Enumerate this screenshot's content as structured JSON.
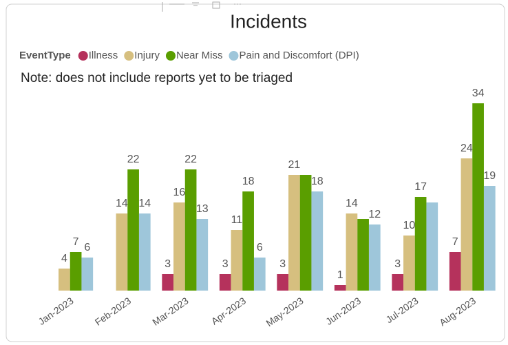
{
  "chart_data": {
    "type": "bar",
    "title": "Incidents",
    "legend_title": "EventType",
    "note": "Note: does not include reports yet to be triaged",
    "categories": [
      "Jan-2023",
      "Feb-2023",
      "Mar-2023",
      "Apr-2023",
      "May-2023",
      "Jun-2023",
      "Jul-2023",
      "Aug-2023"
    ],
    "series": [
      {
        "name": "Illness",
        "color": "#b5325c",
        "values": [
          null,
          null,
          3,
          3,
          3,
          1,
          3,
          7
        ],
        "value_labels": [
          null,
          null,
          "3",
          "3",
          "3",
          "1",
          "3",
          "7"
        ]
      },
      {
        "name": "Injury",
        "color": "#d6bf7f",
        "values": [
          4,
          14,
          16,
          11,
          21,
          14,
          10,
          24
        ],
        "value_labels": [
          "4",
          "14",
          "16",
          "11",
          "21",
          "14",
          "10",
          "24"
        ]
      },
      {
        "name": "Near Miss",
        "color": "#5a9e00",
        "values": [
          7,
          22,
          22,
          18,
          21,
          13,
          17,
          34
        ],
        "value_labels": [
          "7",
          "22",
          "22",
          "18",
          null,
          null,
          "17",
          "34"
        ]
      },
      {
        "name": "Pain and Discomfort (DPI)",
        "color": "#9ec6da",
        "values": [
          6,
          14,
          13,
          6,
          18,
          12,
          16,
          19
        ],
        "value_labels": [
          "6",
          "14",
          "13",
          "6",
          "18",
          "12",
          null,
          "19"
        ]
      }
    ],
    "ylim": [
      0,
      34
    ],
    "legend": "top-left",
    "grid": false
  }
}
